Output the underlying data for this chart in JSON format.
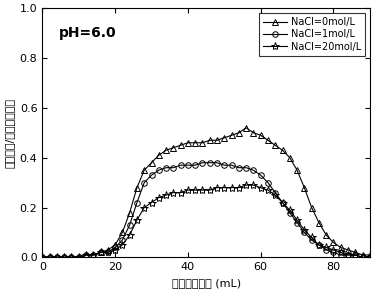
{
  "title_text": "pH=6.0",
  "xlabel_cn": "出水累积体积",
  "xlabel_unit": " (mL)",
  "ylabel_cn": "出水浓度/初始进水浓度",
  "xlim": [
    0,
    90
  ],
  "ylim": [
    0,
    1.0
  ],
  "xticks": [
    0,
    20,
    40,
    60,
    80
  ],
  "yticks": [
    0.0,
    0.2,
    0.4,
    0.6,
    0.8,
    1.0
  ],
  "series": [
    {
      "label": "NaCl=0mol/L",
      "marker": "^",
      "color": "black",
      "x": [
        0,
        2,
        4,
        6,
        8,
        10,
        12,
        14,
        16,
        18,
        20,
        22,
        24,
        26,
        28,
        30,
        32,
        34,
        36,
        38,
        40,
        42,
        44,
        46,
        48,
        50,
        52,
        54,
        56,
        58,
        60,
        62,
        64,
        66,
        68,
        70,
        72,
        74,
        76,
        78,
        80,
        82,
        84,
        86,
        88,
        90
      ],
      "y": [
        0.0,
        0.0,
        0.0,
        0.0,
        0.0,
        0.0,
        0.01,
        0.01,
        0.02,
        0.03,
        0.05,
        0.1,
        0.18,
        0.28,
        0.35,
        0.38,
        0.41,
        0.43,
        0.44,
        0.45,
        0.46,
        0.46,
        0.46,
        0.47,
        0.47,
        0.48,
        0.49,
        0.5,
        0.52,
        0.5,
        0.49,
        0.47,
        0.45,
        0.43,
        0.4,
        0.35,
        0.28,
        0.2,
        0.14,
        0.09,
        0.06,
        0.04,
        0.03,
        0.02,
        0.01,
        0.01
      ]
    },
    {
      "label": "NaCl=1mol/L",
      "marker": "o",
      "color": "black",
      "x": [
        0,
        2,
        4,
        6,
        8,
        10,
        12,
        14,
        16,
        18,
        20,
        22,
        24,
        26,
        28,
        30,
        32,
        34,
        36,
        38,
        40,
        42,
        44,
        46,
        48,
        50,
        52,
        54,
        56,
        58,
        60,
        62,
        64,
        66,
        68,
        70,
        72,
        74,
        76,
        78,
        80,
        82,
        84,
        86,
        88,
        90
      ],
      "y": [
        0.0,
        0.0,
        0.0,
        0.0,
        0.0,
        0.0,
        0.01,
        0.01,
        0.02,
        0.02,
        0.04,
        0.07,
        0.13,
        0.22,
        0.3,
        0.33,
        0.35,
        0.36,
        0.36,
        0.37,
        0.37,
        0.37,
        0.38,
        0.38,
        0.38,
        0.37,
        0.37,
        0.36,
        0.36,
        0.35,
        0.33,
        0.3,
        0.26,
        0.22,
        0.18,
        0.14,
        0.1,
        0.07,
        0.05,
        0.03,
        0.02,
        0.01,
        0.01,
        0.01,
        0.0,
        0.0
      ]
    },
    {
      "label": "NaCl=20mol/L",
      "marker": "*",
      "color": "black",
      "x": [
        0,
        2,
        4,
        6,
        8,
        10,
        12,
        14,
        16,
        18,
        20,
        22,
        24,
        26,
        28,
        30,
        32,
        34,
        36,
        38,
        40,
        42,
        44,
        46,
        48,
        50,
        52,
        54,
        56,
        58,
        60,
        62,
        64,
        66,
        68,
        70,
        72,
        74,
        76,
        78,
        80,
        82,
        84,
        86,
        88,
        90
      ],
      "y": [
        0.0,
        0.0,
        0.0,
        0.0,
        0.0,
        0.0,
        0.01,
        0.01,
        0.02,
        0.02,
        0.03,
        0.05,
        0.09,
        0.15,
        0.2,
        0.22,
        0.24,
        0.25,
        0.26,
        0.26,
        0.27,
        0.27,
        0.27,
        0.27,
        0.28,
        0.28,
        0.28,
        0.28,
        0.29,
        0.29,
        0.28,
        0.27,
        0.25,
        0.22,
        0.19,
        0.15,
        0.11,
        0.08,
        0.05,
        0.04,
        0.03,
        0.02,
        0.01,
        0.01,
        0.0,
        0.0
      ]
    }
  ],
  "background_color": "white",
  "markersize_triangle": 4,
  "markersize_circle": 4,
  "markersize_star": 6,
  "linewidth": 0.8
}
